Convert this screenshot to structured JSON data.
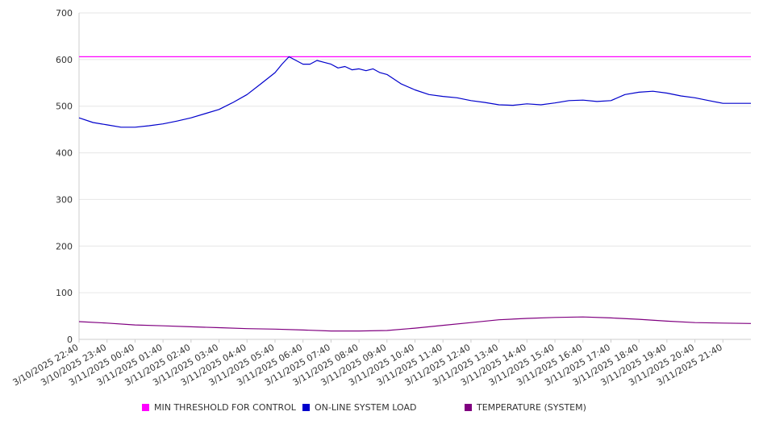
{
  "chart_data": {
    "type": "line",
    "title": "",
    "xlabel": "",
    "ylabel": "",
    "ylim": [
      0,
      700
    ],
    "y_ticks": [
      0,
      100,
      200,
      300,
      400,
      500,
      600,
      700
    ],
    "x_tick_labels": [
      "3/10/2025 22:40",
      "3/10/2025 23:40",
      "3/11/2025 00:40",
      "3/11/2025 01:40",
      "3/11/2025 02:40",
      "3/11/2025 03:40",
      "3/11/2025 04:40",
      "3/11/2025 05:40",
      "3/11/2025 06:40",
      "3/11/2025 07:40",
      "3/11/2025 08:40",
      "3/11/2025 09:40",
      "3/11/2025 10:40",
      "3/11/2025 11:40",
      "3/11/2025 12:40",
      "3/11/2025 13:40",
      "3/11/2025 14:40",
      "3/11/2025 15:40",
      "3/11/2025 16:40",
      "3/11/2025 17:40",
      "3/11/2025 18:40",
      "3/11/2025 19:40",
      "3/11/2025 20:40",
      "3/11/2025 21:40"
    ],
    "x_range_hours": [
      0,
      24
    ],
    "grid": true,
    "legend_position": "bottom",
    "series": [
      {
        "name": "MIN THRESHOLD FOR CONTROL",
        "color": "#ff00ff",
        "x": [
          0,
          24
        ],
        "values": [
          606,
          606
        ]
      },
      {
        "name": "ON-LINE SYSTEM LOAD",
        "color": "#0000cc",
        "x": [
          0,
          0.5,
          1,
          1.5,
          2,
          2.5,
          3,
          3.5,
          4,
          4.5,
          5,
          5.5,
          6,
          6.5,
          7,
          7.25,
          7.5,
          7.75,
          8,
          8.25,
          8.5,
          8.75,
          9,
          9.25,
          9.5,
          9.75,
          10,
          10.25,
          10.5,
          10.75,
          11,
          11.5,
          12,
          12.5,
          13,
          13.5,
          14,
          14.5,
          15,
          15.5,
          16,
          16.5,
          17,
          17.5,
          18,
          18.5,
          19,
          19.5,
          20,
          20.5,
          21,
          21.5,
          22,
          22.5,
          23,
          23.5,
          24
        ],
        "values": [
          475,
          465,
          460,
          455,
          455,
          458,
          462,
          468,
          475,
          484,
          493,
          508,
          525,
          548,
          572,
          590,
          606,
          598,
          590,
          590,
          598,
          594,
          590,
          582,
          585,
          578,
          580,
          576,
          580,
          572,
          568,
          548,
          535,
          525,
          521,
          518,
          512,
          508,
          503,
          502,
          505,
          503,
          507,
          512,
          513,
          510,
          512,
          525,
          530,
          532,
          528,
          522,
          518,
          512,
          506,
          506,
          506
        ]
      },
      {
        "name": "TEMPERATURE (SYSTEM)",
        "color": "#800080",
        "x": [
          0,
          1,
          2,
          3,
          4,
          5,
          6,
          7,
          8,
          9,
          10,
          11,
          12,
          13,
          14,
          15,
          16,
          17,
          18,
          19,
          20,
          21,
          22,
          23,
          24
        ],
        "values": [
          38,
          35,
          31,
          29,
          27,
          25,
          23,
          22,
          20,
          18,
          18,
          19,
          24,
          30,
          36,
          42,
          45,
          47,
          48,
          46,
          43,
          39,
          36,
          35,
          34
        ]
      }
    ]
  }
}
